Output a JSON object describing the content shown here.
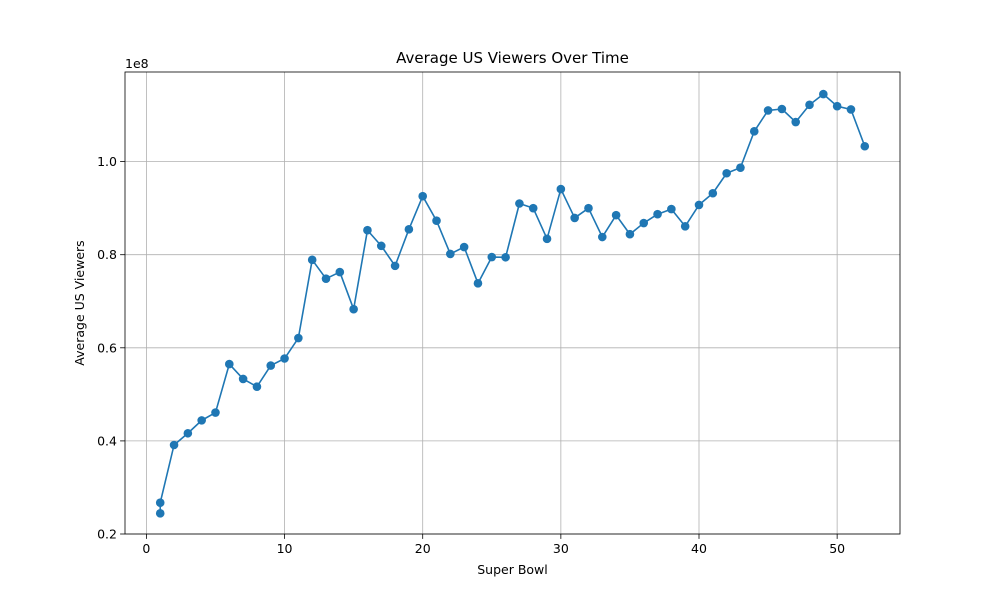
{
  "chart_data": {
    "type": "line",
    "title": "Average US Viewers Over Time",
    "xlabel": "Super Bowl",
    "ylabel": "Average US Viewers",
    "y_offset_label": "1e8",
    "xlim": [
      -1.55,
      54.55
    ],
    "ylim": [
      0.2,
      1.1925
    ],
    "xticks": [
      0,
      10,
      20,
      30,
      40,
      50
    ],
    "xtick_labels": [
      "0",
      "10",
      "20",
      "30",
      "40",
      "50"
    ],
    "yticks": [
      0.2,
      0.4,
      0.6,
      0.8,
      1.0
    ],
    "ytick_labels": [
      "0.2",
      "0.4",
      "0.6",
      "0.8",
      "1.0"
    ],
    "grid": true,
    "marker": "circle",
    "series": [
      {
        "name": "",
        "color": "#1f77b4",
        "x": [
          1,
          1,
          2,
          3,
          4,
          5,
          6,
          7,
          8,
          9,
          10,
          11,
          12,
          13,
          14,
          15,
          16,
          17,
          18,
          19,
          20,
          21,
          22,
          23,
          24,
          25,
          26,
          27,
          28,
          29,
          30,
          31,
          32,
          33,
          34,
          35,
          36,
          37,
          38,
          39,
          40,
          41,
          42,
          43,
          44,
          45,
          46,
          47,
          48,
          49,
          50,
          51,
          52
        ],
        "y": [
          0.2444,
          0.2672,
          0.3912,
          0.4164,
          0.4441,
          0.4609,
          0.565,
          0.5332,
          0.5164,
          0.5618,
          0.577,
          0.621,
          0.789,
          0.7485,
          0.7627,
          0.683,
          0.8526,
          0.819,
          0.776,
          0.8545,
          0.9257,
          0.873,
          0.8017,
          0.8165,
          0.7385,
          0.795,
          0.7945,
          0.91,
          0.9,
          0.8341,
          0.941,
          0.879,
          0.9,
          0.838,
          0.885,
          0.844,
          0.868,
          0.887,
          0.898,
          0.861,
          0.907,
          0.932,
          0.975,
          0.987,
          1.065,
          1.11,
          1.113,
          1.085,
          1.122,
          1.145,
          1.119,
          1.112,
          1.033
        ]
      }
    ]
  }
}
